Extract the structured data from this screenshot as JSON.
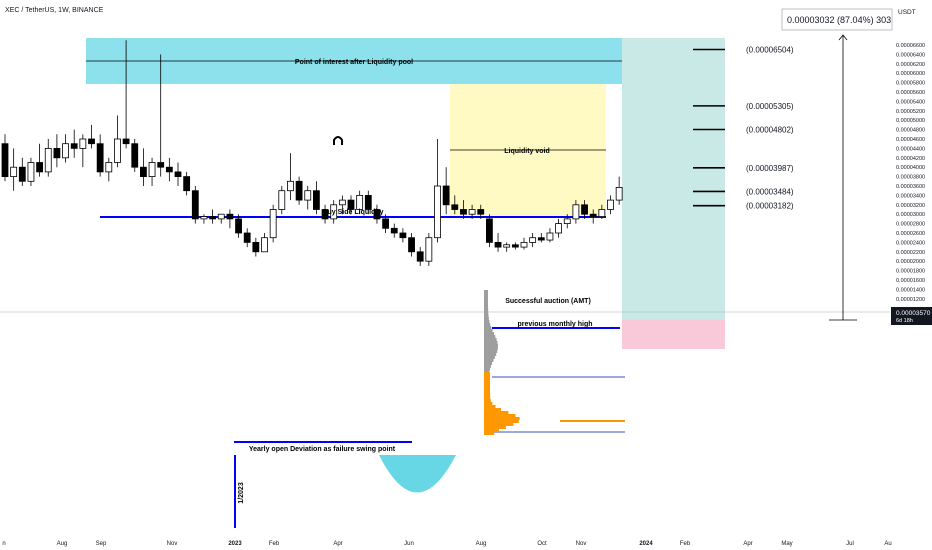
{
  "header": {
    "symbol_title": "XEC / TetherUS, 1W, BINANCE",
    "currency": "USDT",
    "measure_readout": "0.00003032 (87.04%) 303"
  },
  "price_axis": {
    "ticks": [
      "0.00006600",
      "0.00006400",
      "0.00006200",
      "0.00006000",
      "0.00005800",
      "0.00005600",
      "0.00005400",
      "0.00005200",
      "0.00005000",
      "0.00004800",
      "0.00004600",
      "0.00004400",
      "0.00004200",
      "0.00004000",
      "0.00003800",
      "0.00003600",
      "0.00003400",
      "0.00003200",
      "0.00003000",
      "0.00002800",
      "0.00002600",
      "0.00002400",
      "0.00002200",
      "0.00002000",
      "0.00001800",
      "0.00001600",
      "0.00001400",
      "0.00001200"
    ],
    "last_price": "0.00003570",
    "last_price_countdown": "6d 18h",
    "last_price_color": "#131722"
  },
  "time_axis": {
    "ticks": [
      "n",
      "Aug",
      "Sep",
      "Nov",
      "2023",
      "Feb",
      "Apr",
      "Jun",
      "Aug",
      "Oct",
      "Nov",
      "2024",
      "Feb",
      "Apr",
      "May",
      "Jul",
      "Au"
    ]
  },
  "annotations": {
    "poi_label": "Point of interest after Liquidity pool",
    "liquidity_void_label": "Liquidity void",
    "buy_side_label": "Buy Side Liquidity",
    "successful_auction_label": "Successful auction (AMT)",
    "prev_monthly_high_label": "previous monthly high",
    "yearly_open_label": "Yearly open Deviation as failure swing point",
    "vertical_date_label": "1/2023",
    "target_levels": [
      "(0.00006504)",
      "(0.00005305)",
      "(0.00004802)",
      "(0.00003987)",
      "(0.00003484)",
      "(0.00003182)"
    ]
  },
  "colors": {
    "up_candle": "#ffffff",
    "down_candle": "#000000",
    "poi_zone": "#80deea",
    "void_zone": "#fff9c4",
    "target_zone": "#b2dfdb",
    "stop_zone": "#f8bbd0",
    "liquidity_line": "#0000ff",
    "volume_profile_up": "#ff9800",
    "volume_profile_down": "#9e9e9e",
    "swing_arc": "#4dd0e1"
  },
  "chart_data": {
    "type": "candlestick",
    "title": "XEC / TetherUS, 1W, BINANCE",
    "y_unit": "USDT",
    "ylim": [
      1.2e-05,
      6.7e-05
    ],
    "x_range": [
      "2022-06",
      "2024-08"
    ],
    "candles": [
      [
        4.5e-05,
        4.7e-05,
        3.7e-05,
        3.8e-05
      ],
      [
        3.8e-05,
        4.4e-05,
        3.5e-05,
        4e-05
      ],
      [
        4e-05,
        4.2e-05,
        3.6e-05,
        3.7e-05
      ],
      [
        3.7e-05,
        4.2e-05,
        3.6e-05,
        4.1e-05
      ],
      [
        4.1e-05,
        4.5e-05,
        3.8e-05,
        3.9e-05
      ],
      [
        3.9e-05,
        4.6e-05,
        3.8e-05,
        4.4e-05
      ],
      [
        4.4e-05,
        4.7e-05,
        4e-05,
        4.2e-05
      ],
      [
        4.2e-05,
        4.7e-05,
        4.1e-05,
        4.5e-05
      ],
      [
        4.5e-05,
        4.8e-05,
        4.2e-05,
        4.4e-05
      ],
      [
        4.4e-05,
        4.7e-05,
        4e-05,
        4.6e-05
      ],
      [
        4.6e-05,
        4.9e-05,
        4.4e-05,
        4.5e-05
      ],
      [
        4.5e-05,
        4.7e-05,
        3.8e-05,
        3.9e-05
      ],
      [
        3.9e-05,
        4.2e-05,
        3.7e-05,
        4.1e-05
      ],
      [
        4.1e-05,
        5.1e-05,
        4e-05,
        4.6e-05
      ],
      [
        4.6e-05,
        6.7e-05,
        4.4e-05,
        4.5e-05
      ],
      [
        4.5e-05,
        4.6e-05,
        3.9e-05,
        4e-05
      ],
      [
        4e-05,
        4.4e-05,
        3.6e-05,
        3.8e-05
      ],
      [
        3.8e-05,
        4.2e-05,
        3.6e-05,
        4.1e-05
      ],
      [
        4.1e-05,
        6.4e-05,
        3.8e-05,
        4e-05
      ],
      [
        4e-05,
        4.2e-05,
        3.7e-05,
        3.9e-05
      ],
      [
        3.9e-05,
        4.1e-05,
        3.6e-05,
        3.8e-05
      ],
      [
        3.8e-05,
        3.9e-05,
        3.4e-05,
        3.5e-05
      ],
      [
        3.5e-05,
        3.6e-05,
        2.8e-05,
        2.9e-05
      ],
      [
        2.9e-05,
        3e-05,
        2.8e-05,
        2.95e-05
      ],
      [
        2.95e-05,
        3.1e-05,
        2.8e-05,
        2.9e-05
      ],
      [
        2.9e-05,
        3e-05,
        2.8e-05,
        3e-05
      ],
      [
        3e-05,
        3.1e-05,
        2.7e-05,
        2.9e-05
      ],
      [
        2.9e-05,
        3e-05,
        2.5e-05,
        2.6e-05
      ],
      [
        2.6e-05,
        2.7e-05,
        2.3e-05,
        2.4e-05
      ],
      [
        2.4e-05,
        2.5e-05,
        2.1e-05,
        2.2e-05
      ],
      [
        2.2e-05,
        2.6e-05,
        2.2e-05,
        2.5e-05
      ],
      [
        2.5e-05,
        3.2e-05,
        2.4e-05,
        3.1e-05
      ],
      [
        3.1e-05,
        3.6e-05,
        3e-05,
        3.5e-05
      ],
      [
        3.5e-05,
        4.3e-05,
        3.3e-05,
        3.7e-05
      ],
      [
        3.7e-05,
        3.8e-05,
        3.2e-05,
        3.3e-05
      ],
      [
        3.3e-05,
        3.6e-05,
        3.1e-05,
        3.5e-05
      ],
      [
        3.5e-05,
        3.7e-05,
        3e-05,
        3.1e-05
      ],
      [
        3.1e-05,
        3.2e-05,
        2.8e-05,
        2.9e-05
      ],
      [
        2.9e-05,
        3.3e-05,
        2.8e-05,
        3.2e-05
      ],
      [
        3.2e-05,
        3.4e-05,
        3e-05,
        3.3e-05
      ],
      [
        3.3e-05,
        3.4e-05,
        3e-05,
        3.1e-05
      ],
      [
        3.1e-05,
        3.5e-05,
        3e-05,
        3.4e-05
      ],
      [
        3.4e-05,
        3.5e-05,
        3e-05,
        3.1e-05
      ],
      [
        3.1e-05,
        3.2e-05,
        2.8e-05,
        2.9e-05
      ],
      [
        2.9e-05,
        3e-05,
        2.6e-05,
        2.7e-05
      ],
      [
        2.7e-05,
        2.8e-05,
        2.5e-05,
        2.6e-05
      ],
      [
        2.6e-05,
        2.7e-05,
        2.4e-05,
        2.5e-05
      ],
      [
        2.5e-05,
        2.6e-05,
        2.1e-05,
        2.2e-05
      ],
      [
        2.2e-05,
        2.3e-05,
        1.9e-05,
        2e-05
      ],
      [
        2e-05,
        2.6e-05,
        1.9e-05,
        2.5e-05
      ],
      [
        2.5e-05,
        4.6e-05,
        2.4e-05,
        3.6e-05
      ],
      [
        3.6e-05,
        4e-05,
        3e-05,
        3.2e-05
      ],
      [
        3.2e-05,
        3.4e-05,
        3e-05,
        3.1e-05
      ],
      [
        3.1e-05,
        3.3e-05,
        2.9e-05,
        3e-05
      ],
      [
        3e-05,
        3.2e-05,
        2.9e-05,
        3.1e-05
      ],
      [
        3.1e-05,
        3.2e-05,
        2.9e-05,
        3e-05
      ],
      [
        2.9e-05,
        3e-05,
        2.3e-05,
        2.4e-05
      ],
      [
        2.4e-05,
        2.6e-05,
        2.2e-05,
        2.3e-05
      ],
      [
        2.3e-05,
        2.4e-05,
        2.2e-05,
        2.35e-05
      ],
      [
        2.35e-05,
        2.4e-05,
        2.25e-05,
        2.3e-05
      ],
      [
        2.3e-05,
        2.5e-05,
        2.25e-05,
        2.4e-05
      ],
      [
        2.4e-05,
        2.6e-05,
        2.3e-05,
        2.5e-05
      ],
      [
        2.5e-05,
        2.6e-05,
        2.4e-05,
        2.45e-05
      ],
      [
        2.45e-05,
        2.7e-05,
        2.4e-05,
        2.6e-05
      ],
      [
        2.6e-05,
        2.9e-05,
        2.5e-05,
        2.8e-05
      ],
      [
        2.8e-05,
        3e-05,
        2.7e-05,
        2.9e-05
      ],
      [
        2.9e-05,
        3.3e-05,
        2.8e-05,
        3.2e-05
      ],
      [
        3.2e-05,
        3.3e-05,
        2.9e-05,
        3e-05
      ],
      [
        3e-05,
        3.1e-05,
        2.8e-05,
        2.95e-05
      ],
      [
        2.95e-05,
        3.2e-05,
        2.9e-05,
        3.1e-05
      ],
      [
        3.1e-05,
        3.4e-05,
        3e-05,
        3.3e-05
      ],
      [
        3.3e-05,
        3.8e-05,
        3.2e-05,
        3.57e-05
      ]
    ],
    "levels": [
      6.504e-05,
      5.305e-05,
      4.802e-05,
      3.987e-05,
      3.484e-05,
      3.182e-05
    ],
    "buy_side_liquidity": 4.59e-05,
    "previous_monthly_high": 3.4e-05,
    "yearly_open": 2.15e-05,
    "grid": false,
    "log_scale": false
  }
}
